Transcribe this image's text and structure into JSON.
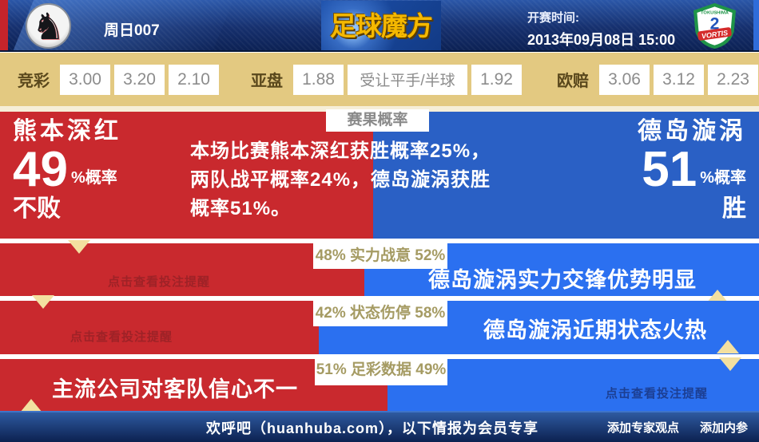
{
  "header": {
    "round_label": "周日007",
    "brand": "足球魔方",
    "kickoff_label": "开赛时间:",
    "kickoff_datetime": "2013年09月08日 15:00",
    "away_crest_top": "TOKUSHIMA",
    "away_crest_text": "VORTIS"
  },
  "odds_bar": {
    "groups": [
      {
        "label": "竞彩",
        "cells": [
          "3.00",
          "3.20",
          "2.10"
        ]
      },
      {
        "label": "亚盘",
        "cells": [
          "1.88",
          "受让平手/半球",
          "1.92"
        ]
      },
      {
        "label": "欧赔",
        "cells": [
          "3.06",
          "3.12",
          "2.23"
        ]
      }
    ]
  },
  "probability": {
    "tab": "赛果概率",
    "home_name": "熊本深红",
    "home_percent": "49",
    "home_percent_unit": "%概率",
    "home_outcome": "不败",
    "away_name": "德岛漩涡",
    "away_percent": "51",
    "away_percent_unit": "%概率",
    "away_outcome": "胜",
    "summary_line1": "本场比赛熊本深红获胜概率25%，",
    "summary_line2": "两队战平概率24%，德岛漩涡获胜",
    "summary_line3": "概率51%。"
  },
  "rows": [
    {
      "strip": "48% 实力战意 52%",
      "home_pct": 48,
      "hint": "点击查看投注提醒",
      "verdict": "德岛漩涡实力交锋优势明显"
    },
    {
      "strip": "42% 状态伤停 58%",
      "home_pct": 42,
      "hint": "点击查看投注提醒",
      "verdict": "德岛漩涡近期状态火热"
    },
    {
      "strip": "51% 足彩数据 49%",
      "home_pct": 51,
      "hint": "点击查看投注提醒",
      "verdict": "主流公司对客队信心不一"
    }
  ],
  "footer": {
    "site_note": "欢呼吧（huanhuba.com），以下情报为会员专享",
    "link_expert": "添加专家观点",
    "link_insider": "添加内参"
  },
  "colors": {
    "home_red": "#c9292e",
    "away_blue": "#2a60c5",
    "row_blue": "#2b70f0",
    "accent_gold": "#f5b800",
    "arrow_cream": "#f3e0a0",
    "odds_tan": "#e3c981",
    "header_navy": "#16306e"
  }
}
